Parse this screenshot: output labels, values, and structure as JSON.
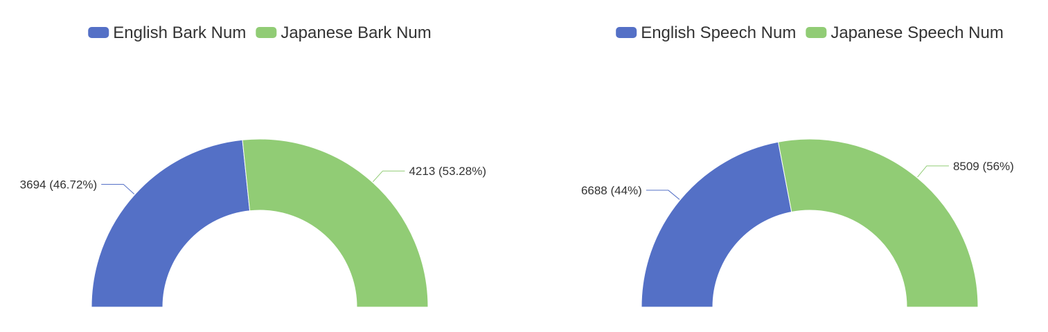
{
  "chart_data": [
    {
      "type": "pie",
      "variant": "half-donut",
      "title": "",
      "legend_placement": "top-center",
      "series": [
        {
          "name": "English Bark Num",
          "value": 3694,
          "label": "3694 (46.72%)",
          "color": "#5470c6"
        },
        {
          "name": "Japanese Bark Num",
          "value": 4213,
          "label": "4213 (53.28%)",
          "color": "#91cc75"
        }
      ]
    },
    {
      "type": "pie",
      "variant": "half-donut",
      "title": "",
      "legend_placement": "top-center",
      "series": [
        {
          "name": "English Speech Num",
          "value": 6688,
          "label": "6688 (44%)",
          "color": "#5470c6"
        },
        {
          "name": "Japanese Speech Num",
          "value": 8509,
          "label": "8509 (56%)",
          "color": "#91cc75"
        }
      ]
    }
  ]
}
